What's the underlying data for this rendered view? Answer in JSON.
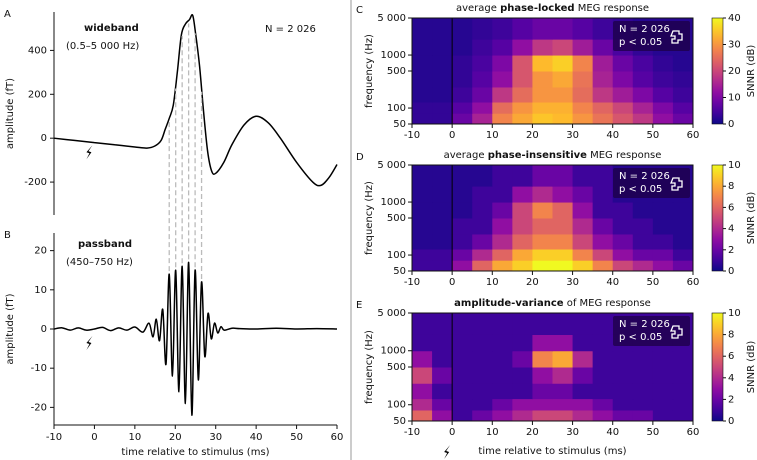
{
  "chart_data": [
    {
      "type": "line",
      "panel": "A",
      "ylabel": "amplitude (fT)",
      "annotations": [
        "wideband",
        "(0.5–5 000 Hz)",
        "N = 2 026"
      ],
      "xlim": [
        -10,
        60
      ],
      "ylim": [
        -350,
        575
      ],
      "yticks": [
        -200,
        0,
        200,
        400
      ],
      "color": "#000000",
      "x": [
        -10,
        -5,
        0,
        5,
        10,
        13,
        15,
        16.5,
        17.5,
        18.5,
        19.5,
        20.5,
        21.5,
        22.5,
        23.5,
        24.3,
        25,
        26,
        27,
        28,
        29,
        30,
        32,
        34,
        37,
        40,
        43,
        46,
        50,
        54,
        56,
        58,
        60
      ],
      "values": [
        0,
        -10,
        -20,
        -30,
        -40,
        -45,
        -35,
        -10,
        40,
        90,
        150,
        300,
        470,
        520,
        540,
        560,
        480,
        330,
        120,
        -60,
        -150,
        -160,
        -110,
        -30,
        60,
        100,
        70,
        0,
        -110,
        -200,
        -215,
        -180,
        -120
      ]
    },
    {
      "type": "line",
      "panel": "B",
      "ylabel": "amplitude (fT)",
      "xlabel": "time relative to stimulus (ms)",
      "annotations": [
        "passband",
        "(450–750 Hz)"
      ],
      "xlim": [
        -10,
        60
      ],
      "xticks": [
        -10,
        0,
        10,
        20,
        30,
        40,
        50,
        60
      ],
      "ylim": [
        -24.5,
        24.5
      ],
      "yticks": [
        -20,
        -10,
        0,
        10,
        20
      ],
      "color": "#000000",
      "x": [
        -10,
        -8,
        -6,
        -4,
        -2,
        0,
        2,
        4,
        6,
        8,
        10,
        12,
        13.5,
        14.5,
        15.3,
        16.1,
        16.9,
        17.7,
        18.5,
        19.3,
        20.1,
        20.9,
        21.7,
        22.5,
        23.3,
        24.1,
        24.9,
        25.7,
        26.5,
        27.3,
        28.1,
        28.9,
        29.7,
        30.5,
        31.3,
        32.1,
        34,
        36,
        40,
        45,
        50,
        55,
        60
      ],
      "values": [
        0,
        0.3,
        -0.3,
        0.3,
        -0.3,
        0,
        0.4,
        -0.4,
        0.3,
        -0.3,
        0.5,
        -0.8,
        1.5,
        -2,
        2.5,
        -3,
        5,
        -9,
        14,
        -12,
        15,
        -16,
        16,
        -19,
        17,
        -22,
        15,
        -13,
        12,
        -7,
        4,
        -2.5,
        1.5,
        -1,
        0.6,
        -0.3,
        0.2,
        0.1,
        0,
        0.2,
        0,
        0.1,
        0
      ]
    },
    {
      "type": "heatmap",
      "panel": "C",
      "title": {
        "lead": "average ",
        "bold": "phase-locked",
        "tail": " MEG response"
      },
      "ylabel": "frequency (Hz)",
      "colorbar_label": "SNNR (dB)",
      "legend": [
        "N = 2 026",
        "p < 0.05"
      ],
      "xlim": [
        -10,
        60
      ],
      "xticks": [
        -10,
        0,
        10,
        20,
        30,
        40,
        50,
        60
      ],
      "ylim": [
        50,
        5000
      ],
      "log_y": true,
      "yticks": [
        50,
        100,
        500,
        1000,
        {
          "value": 5000,
          "label": "5 000"
        }
      ],
      "clim": [
        0,
        40
      ],
      "cticks": [
        0,
        10,
        20,
        30,
        40
      ],
      "xbins": [
        -10,
        -5,
        0,
        5,
        10,
        15,
        20,
        25,
        30,
        35,
        40,
        45,
        50,
        55,
        60
      ],
      "ybins": [
        50,
        80,
        130,
        250,
        500,
        1000,
        2000,
        5000
      ],
      "values": [
        [
          3,
          3,
          8,
          15,
          28,
          32,
          35,
          34,
          30,
          26,
          22,
          18,
          12,
          8
        ],
        [
          3,
          3,
          6,
          12,
          25,
          30,
          33,
          33,
          28,
          24,
          20,
          15,
          10,
          6
        ],
        [
          2,
          2,
          4,
          8,
          18,
          25,
          30,
          30,
          25,
          18,
          14,
          10,
          6,
          4
        ],
        [
          2,
          2,
          3,
          6,
          12,
          22,
          30,
          32,
          26,
          15,
          10,
          6,
          4,
          3
        ],
        [
          2,
          2,
          3,
          5,
          10,
          22,
          34,
          36,
          28,
          14,
          8,
          5,
          3,
          2
        ],
        [
          2,
          2,
          2,
          4,
          6,
          12,
          18,
          20,
          14,
          8,
          5,
          3,
          2,
          2
        ],
        [
          2,
          2,
          2,
          3,
          4,
          6,
          8,
          8,
          6,
          4,
          3,
          2,
          2,
          2
        ]
      ]
    },
    {
      "type": "heatmap",
      "panel": "D",
      "title": {
        "lead": "average ",
        "bold": "phase-insensitive",
        "tail": " MEG response"
      },
      "ylabel": "frequency (Hz)",
      "colorbar_label": "SNNR (dB)",
      "legend": [
        "N = 2 026",
        "p < 0.05"
      ],
      "xlim": [
        -10,
        60
      ],
      "xticks": [
        -10,
        0,
        10,
        20,
        30,
        40,
        50,
        60
      ],
      "ylim": [
        50,
        5000
      ],
      "log_y": true,
      "yticks": [
        50,
        100,
        500,
        1000,
        {
          "value": 5000,
          "label": "5 000"
        }
      ],
      "clim": [
        0,
        10
      ],
      "cticks": [
        0,
        2,
        4,
        6,
        8,
        10
      ],
      "xbins": [
        -10,
        -5,
        0,
        5,
        10,
        15,
        20,
        25,
        30,
        35,
        40,
        45,
        50,
        55,
        60
      ],
      "ybins": [
        50,
        80,
        130,
        250,
        500,
        1000,
        2000,
        5000
      ],
      "values": [
        [
          1,
          1,
          3,
          6,
          8,
          9,
          10,
          10,
          9,
          7,
          5,
          4,
          3,
          2
        ],
        [
          1,
          1,
          2,
          4,
          6,
          8,
          9,
          9,
          7,
          5,
          3,
          2,
          2,
          1
        ],
        [
          0.5,
          0.5,
          1,
          2,
          4,
          6,
          7,
          7,
          5,
          3,
          2,
          1,
          1,
          0.5
        ],
        [
          0.5,
          0.5,
          1,
          1,
          3,
          5,
          6,
          6,
          4,
          2,
          1,
          1,
          0.5,
          0.5
        ],
        [
          0.5,
          0.5,
          0.5,
          1,
          2,
          5,
          7,
          6,
          3,
          1,
          1,
          0.5,
          0.5,
          0.5
        ],
        [
          0.5,
          0.5,
          0.5,
          1,
          1,
          3,
          4,
          3,
          2,
          1,
          0.5,
          0.5,
          0.5,
          0.5
        ],
        [
          0.5,
          0.5,
          0.5,
          0.5,
          1,
          1,
          2,
          2,
          1,
          1,
          0.5,
          0.5,
          0.5,
          0.5
        ]
      ]
    },
    {
      "type": "heatmap",
      "panel": "E",
      "title": {
        "bold": "amplitude-variance",
        "tail": " of MEG response"
      },
      "ylabel": "frequency (Hz)",
      "xlabel": "time relative to stimulus (ms)",
      "colorbar_label": "SNNR (dB)",
      "legend": [
        "N = 2 026",
        "p < 0.05"
      ],
      "xlim": [
        -10,
        60
      ],
      "xticks": [
        -10,
        0,
        10,
        20,
        30,
        40,
        50,
        60
      ],
      "ylim": [
        50,
        5000
      ],
      "log_y": true,
      "yticks": [
        50,
        100,
        500,
        1000,
        {
          "value": 5000,
          "label": "5 000"
        }
      ],
      "clim": [
        0,
        10
      ],
      "cticks": [
        0,
        2,
        4,
        6,
        8,
        10
      ],
      "xbins": [
        -10,
        -5,
        0,
        5,
        10,
        15,
        20,
        25,
        30,
        35,
        40,
        45,
        50,
        55,
        60
      ],
      "ybins": [
        50,
        80,
        130,
        250,
        500,
        1000,
        2000,
        5000
      ],
      "values": [
        [
          6,
          3,
          1,
          2,
          3,
          4,
          5,
          5,
          4,
          3,
          2,
          2,
          1,
          1
        ],
        [
          4,
          2,
          1,
          1,
          2,
          3,
          3,
          3,
          3,
          2,
          1,
          1,
          1,
          1
        ],
        [
          3,
          1,
          1,
          1,
          1,
          1,
          2,
          2,
          1,
          1,
          1,
          1,
          1,
          1
        ],
        [
          5,
          2,
          1,
          1,
          1,
          1,
          3,
          4,
          2,
          1,
          1,
          1,
          1,
          1
        ],
        [
          3,
          1,
          1,
          1,
          1,
          2,
          7,
          8,
          4,
          1,
          1,
          1,
          1,
          1
        ],
        [
          1,
          1,
          1,
          1,
          1,
          1,
          3,
          3,
          1,
          1,
          1,
          1,
          1,
          1
        ],
        [
          1,
          1,
          1,
          1,
          1,
          1,
          1,
          1,
          1,
          1,
          1,
          1,
          1,
          1
        ]
      ]
    }
  ]
}
